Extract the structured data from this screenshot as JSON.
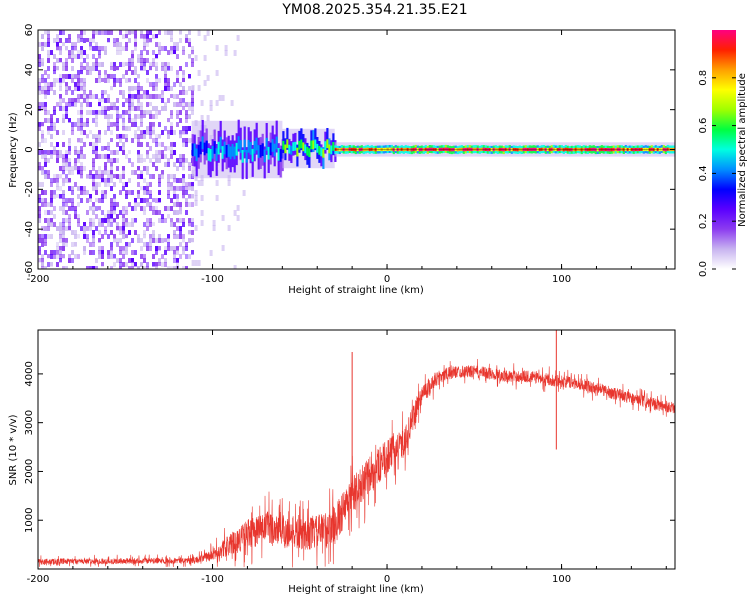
{
  "title": "YM08.2025.354.21.35.E21",
  "colors": {
    "snr_line": "#e8362e",
    "axis": "#000000",
    "colormap": [
      "#ffffff",
      "#c8b4f0",
      "#8c3cf0",
      "#5a00ff",
      "#0000ff",
      "#0090ff",
      "#00ffe0",
      "#00ff40",
      "#a0ff00",
      "#ffff00",
      "#ffa000",
      "#ff2000",
      "#ff0080"
    ]
  },
  "chart_data": [
    {
      "type": "heatmap",
      "name": "spectrogram",
      "xlabel": "Height of straight line (km)",
      "ylabel": "Frequency (Hz)",
      "xlim": [
        -200,
        165
      ],
      "ylim": [
        -60,
        60
      ],
      "xticks": [
        -200,
        -100,
        0,
        100
      ],
      "yticks": [
        -60,
        -40,
        -20,
        0,
        20,
        40,
        60
      ],
      "colorbar": {
        "label": "Normalized spectral amplitude",
        "range": [
          0,
          1
        ],
        "ticks": [
          0.0,
          0.2,
          0.4,
          0.6,
          0.8
        ]
      },
      "regions": [
        {
          "x": [
            -200,
            -112
          ],
          "freq": [
            -60,
            60
          ],
          "amplitude": 0.15,
          "pattern": "noise"
        },
        {
          "x": [
            -112,
            -60
          ],
          "freq": [
            -8,
            8
          ],
          "amplitude": 0.45,
          "pattern": "carrier"
        },
        {
          "x": [
            -60,
            -30
          ],
          "freq": [
            -5,
            6
          ],
          "amplitude": 0.6,
          "pattern": "carrier"
        },
        {
          "x": [
            -30,
            165
          ],
          "freq": [
            -2,
            2
          ],
          "amplitude": 0.95,
          "pattern": "carrier"
        }
      ]
    },
    {
      "type": "line",
      "name": "snr",
      "xlabel": "Height of straight line (km)",
      "ylabel": "SNR (10 * v/v)",
      "xlim": [
        -200,
        165
      ],
      "ylim": [
        0,
        4900
      ],
      "xticks": [
        -200,
        -100,
        0,
        100
      ],
      "yticks": [
        1000,
        2000,
        3000,
        4000
      ],
      "series": [
        {
          "name": "SNR",
          "x": [
            -200,
            -150,
            -110,
            -100,
            -90,
            -80,
            -70,
            -60,
            -50,
            -40,
            -30,
            -20,
            -10,
            0,
            10,
            20,
            30,
            40,
            50,
            60,
            70,
            80,
            90,
            100,
            110,
            120,
            130,
            140,
            150,
            165
          ],
          "mean": [
            150,
            160,
            180,
            280,
            500,
            700,
            850,
            800,
            700,
            750,
            900,
            1500,
            1900,
            2300,
            2600,
            3600,
            3950,
            4050,
            4050,
            4000,
            3950,
            3950,
            3900,
            3850,
            3800,
            3700,
            3600,
            3500,
            3400,
            3300
          ],
          "noise": [
            120,
            120,
            120,
            250,
            450,
            600,
            700,
            750,
            650,
            700,
            800,
            800,
            800,
            700,
            600,
            400,
            300,
            250,
            250,
            250,
            250,
            250,
            250,
            250,
            250,
            250,
            250,
            250,
            250,
            250
          ]
        }
      ],
      "spikes": [
        {
          "x": -20,
          "y": 4450
        },
        {
          "x": 97,
          "y": 4950
        },
        {
          "x": 97,
          "y": 2450
        }
      ]
    }
  ]
}
